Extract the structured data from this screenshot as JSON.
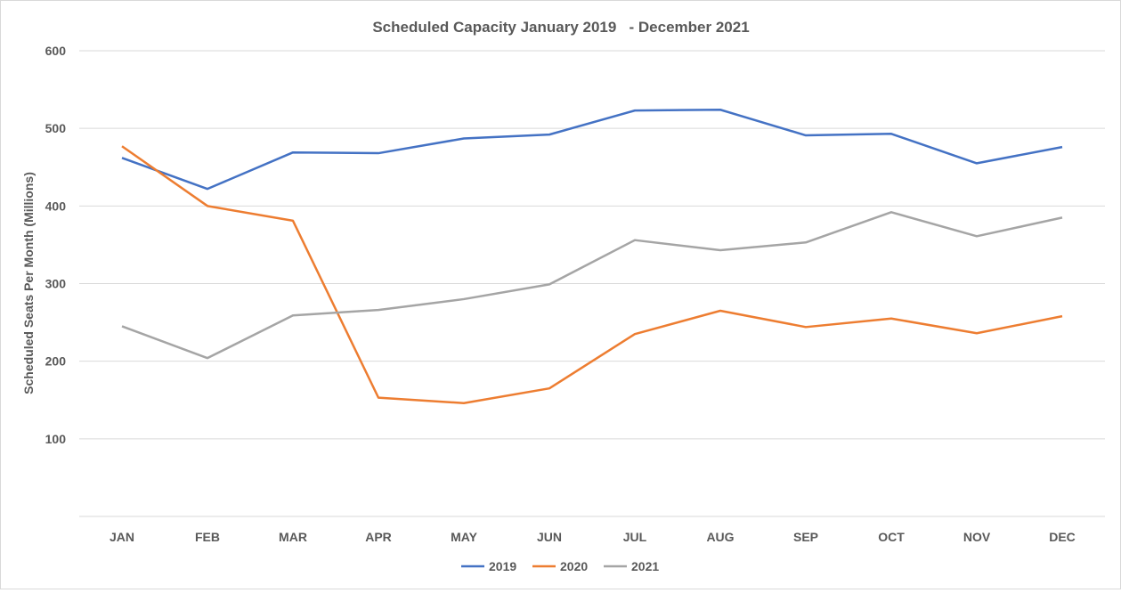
{
  "chart_data": {
    "type": "line",
    "title": "Scheduled Capacity January 2019   - December 2021",
    "xlabel": "",
    "ylabel": "Scheduled Seats Per Month (Millions)",
    "categories": [
      "JAN",
      "FEB",
      "MAR",
      "APR",
      "MAY",
      "JUN",
      "JUL",
      "AUG",
      "SEP",
      "OCT",
      "NOV",
      "DEC"
    ],
    "ylim": [
      0,
      600
    ],
    "yticks": [
      100,
      200,
      300,
      400,
      500,
      600
    ],
    "grid": true,
    "legend": "bottom-center",
    "series": [
      {
        "name": "2019",
        "color": "#4472C4",
        "values": [
          462,
          422,
          469,
          468,
          487,
          492,
          523,
          524,
          491,
          493,
          455,
          476
        ]
      },
      {
        "name": "2020",
        "color": "#ED7D31",
        "values": [
          477,
          400,
          381,
          153,
          146,
          165,
          235,
          265,
          244,
          255,
          236,
          258
        ]
      },
      {
        "name": "2021",
        "color": "#A5A5A5",
        "values": [
          245,
          204,
          259,
          266,
          280,
          299,
          356,
          343,
          353,
          392,
          361,
          385
        ]
      }
    ]
  }
}
